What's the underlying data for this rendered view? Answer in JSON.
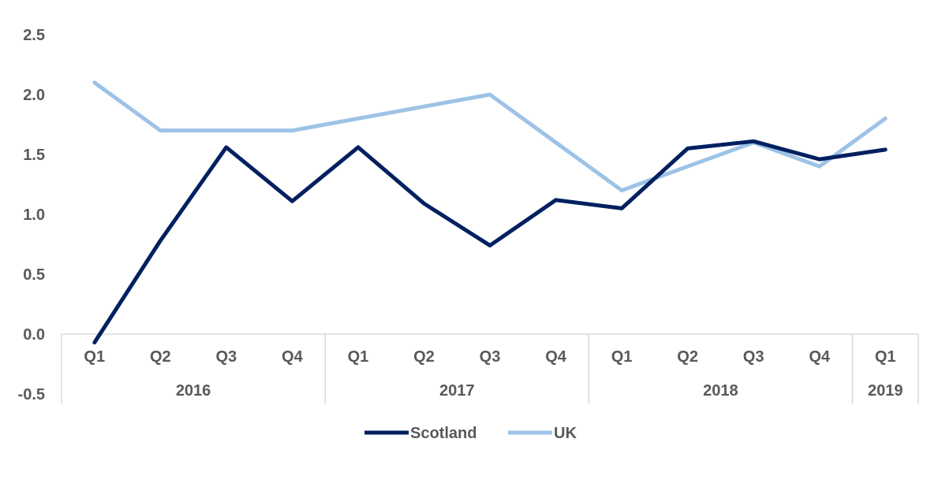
{
  "chart_data": {
    "type": "line",
    "categories": [
      "Q1",
      "Q2",
      "Q3",
      "Q4",
      "Q1",
      "Q2",
      "Q3",
      "Q4",
      "Q1",
      "Q2",
      "Q3",
      "Q4",
      "Q1"
    ],
    "groups": [
      {
        "label": "2016",
        "count": 4
      },
      {
        "label": "2017",
        "count": 4
      },
      {
        "label": "2018",
        "count": 4
      },
      {
        "label": "2019",
        "count": 1
      }
    ],
    "series": [
      {
        "name": "Scotland",
        "color": "#002060",
        "values": [
          -0.07,
          0.78,
          1.56,
          1.11,
          1.56,
          1.09,
          0.74,
          1.12,
          1.05,
          1.55,
          1.61,
          1.46,
          1.54
        ]
      },
      {
        "name": "UK",
        "color": "#9DC3E6",
        "values": [
          2.1,
          1.7,
          1.7,
          1.7,
          1.8,
          1.9,
          2.0,
          1.6,
          1.2,
          1.4,
          1.6,
          1.4,
          1.8
        ]
      }
    ],
    "yticks": [
      "2.5",
      "2.0",
      "1.5",
      "1.0",
      "0.5",
      "0.0",
      "-0.5"
    ],
    "ylim": [
      -0.5,
      2.5
    ],
    "title": "",
    "xlabel": "",
    "ylabel": "",
    "legend_position": "bottom",
    "grid": false
  }
}
